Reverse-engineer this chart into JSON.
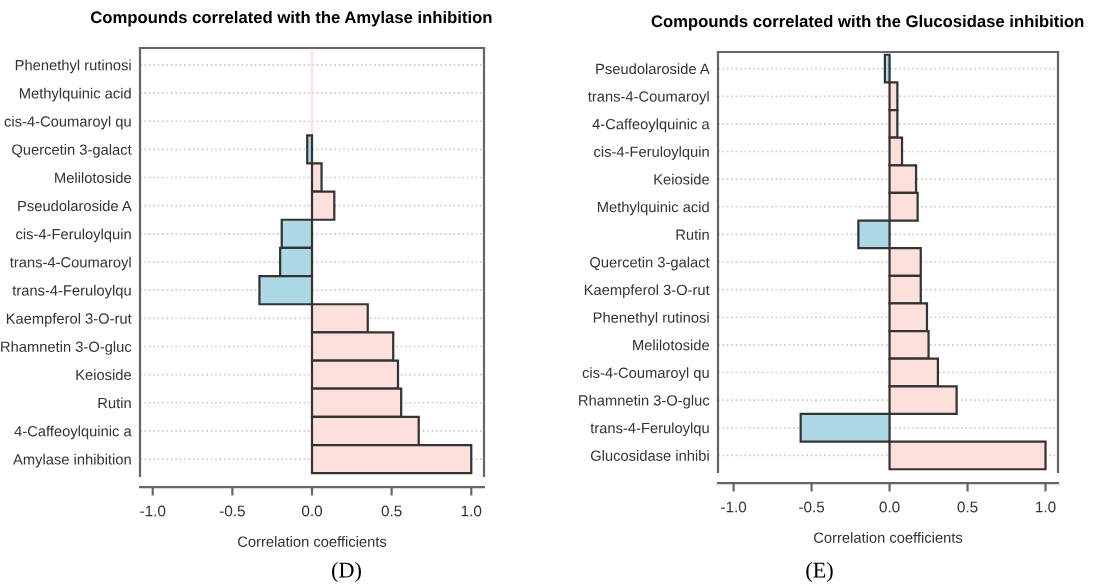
{
  "chart_data": [
    {
      "type": "bar",
      "orientation": "horizontal",
      "title": "Compounds correlated with the Amylase inhibition",
      "xlabel": "Correlation coefficients",
      "categories": [
        "Phenethyl rutinosi",
        "Methylquinic acid",
        "cis-4-Coumaroyl qu",
        "Quercetin 3-galact",
        "Melilotoside",
        "Pseudolaroside A",
        "cis-4-Feruloylquin",
        "trans-4-Coumaroyl",
        "trans-4-Feruloylqu",
        "Kaempferol 3-O-rut",
        "Rhamnetin 3-O-gluc",
        "Keioside",
        "Rutin",
        "4-Caffeoylquinic a",
        "Amylase inhibition"
      ],
      "values": [
        0,
        0,
        0,
        -0.03,
        0.06,
        0.14,
        -0.19,
        -0.2,
        -0.33,
        0.35,
        0.51,
        0.54,
        0.56,
        0.67,
        1.0
      ],
      "colors": [
        "#fde0dc",
        "#fde0dc",
        "#fde0dc",
        "#add8e6",
        "#fde0dc",
        "#fde0dc",
        "#add8e6",
        "#add8e6",
        "#add8e6",
        "#fde0dc",
        "#fde0dc",
        "#fde0dc",
        "#fde0dc",
        "#fde0dc",
        "#fde0dc"
      ],
      "xlim": [
        -1.08,
        1.08
      ],
      "xticks": [
        {
          "value": -1,
          "label": "-1.0"
        },
        {
          "value": -0.5,
          "label": "-0.5"
        },
        {
          "value": 0,
          "label": "0.0"
        },
        {
          "value": 0.5,
          "label": "0.5"
        },
        {
          "value": 1,
          "label": "1.0"
        }
      ],
      "grid": "y",
      "annotations": [
        "(D)"
      ]
    },
    {
      "type": "bar",
      "orientation": "horizontal",
      "title": "Compounds correlated with the Glucosidase inhibition",
      "xlabel": "Correlation coefficients",
      "categories": [
        "Pseudolaroside A",
        "trans-4-Coumaroyl",
        "4-Caffeoylquinic a",
        "cis-4-Feruloylquin",
        "Keioside",
        "Methylquinic acid",
        "Rutin",
        "Quercetin 3-galact",
        "Kaempferol 3-O-rut",
        "Phenethyl rutinosi",
        "Melilotoside",
        "cis-4-Coumaroyl qu",
        "Rhamnetin 3-O-gluc",
        "trans-4-Feruloylqu",
        "Glucosidase inhibi"
      ],
      "values": [
        -0.03,
        0.05,
        0.05,
        0.08,
        0.17,
        0.18,
        -0.2,
        0.2,
        0.2,
        0.24,
        0.25,
        0.31,
        0.43,
        -0.57,
        1.0
      ],
      "colors": [
        "#add8e6",
        "#fde0dc",
        "#fde0dc",
        "#fde0dc",
        "#fde0dc",
        "#fde0dc",
        "#add8e6",
        "#fde0dc",
        "#fde0dc",
        "#fde0dc",
        "#fde0dc",
        "#fde0dc",
        "#fde0dc",
        "#add8e6",
        "#fde0dc"
      ],
      "xlim": [
        -1.1,
        1.08
      ],
      "xticks": [
        {
          "value": -1,
          "label": "-1.0"
        },
        {
          "value": -0.5,
          "label": "-0.5"
        },
        {
          "value": 0,
          "label": "0.0"
        },
        {
          "value": 0.5,
          "label": "0.5"
        },
        {
          "value": 1,
          "label": "1.0"
        }
      ],
      "grid": "y",
      "annotations": [
        "(E)"
      ]
    }
  ]
}
